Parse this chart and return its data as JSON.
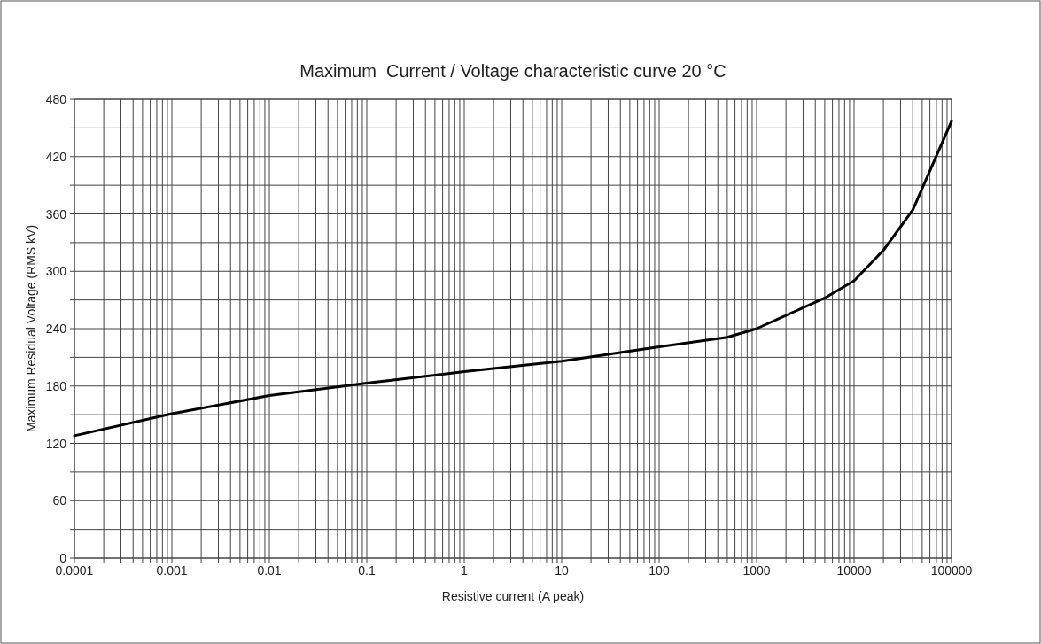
{
  "chart_data": {
    "type": "line",
    "title": "Maximum  Current / Voltage characteristic curve 20 °C",
    "xlabel": "Resistive current (A peak)",
    "ylabel": "Maximum Residual Voltage (RMS kV)",
    "log": "x",
    "grid": true,
    "marker": "none",
    "line_style": "solid",
    "x": [
      0.0001,
      0.001,
      0.01,
      0.1,
      1,
      10,
      100,
      500,
      1000,
      5000,
      10000,
      20000,
      40000,
      100000
    ],
    "series": [
      {
        "color": "#000000",
        "values": [
          128,
          151,
          170,
          183,
          195,
          206,
          221,
          231,
          240,
          272,
          290,
          322,
          364,
          457
        ]
      }
    ],
    "xlim": [
      0.0001,
      100000
    ],
    "ylim": [
      0,
      480
    ],
    "xticks": [
      0.0001,
      {
        "value": 0.0002,
        "label": null
      },
      {
        "value": 0.0003,
        "label": null
      },
      {
        "value": 0.0004,
        "label": null
      },
      {
        "value": 0.0005,
        "label": null
      },
      {
        "value": 0.0006,
        "label": null
      },
      {
        "value": 0.0007,
        "label": null
      },
      {
        "value": 0.0008,
        "label": null
      },
      {
        "value": 0.0009,
        "label": null
      },
      0.001,
      {
        "value": 0.002,
        "label": null
      },
      {
        "value": 0.003,
        "label": null
      },
      {
        "value": 0.004,
        "label": null
      },
      {
        "value": 0.005,
        "label": null
      },
      {
        "value": 0.006,
        "label": null
      },
      {
        "value": 0.007,
        "label": null
      },
      {
        "value": 0.008,
        "label": null
      },
      {
        "value": 0.009,
        "label": null
      },
      0.01,
      {
        "value": 0.02,
        "label": null
      },
      {
        "value": 0.03,
        "label": null
      },
      {
        "value": 0.04,
        "label": null
      },
      {
        "value": 0.05,
        "label": null
      },
      {
        "value": 0.06,
        "label": null
      },
      {
        "value": 0.07,
        "label": null
      },
      {
        "value": 0.08,
        "label": null
      },
      {
        "value": 0.09,
        "label": null
      },
      0.1,
      {
        "value": 0.2,
        "label": null
      },
      {
        "value": 0.3,
        "label": null
      },
      {
        "value": 0.4,
        "label": null
      },
      {
        "value": 0.5,
        "label": null
      },
      {
        "value": 0.6,
        "label": null
      },
      {
        "value": 0.7,
        "label": null
      },
      {
        "value": 0.8,
        "label": null
      },
      {
        "value": 0.9,
        "label": null
      },
      1,
      {
        "value": 2,
        "label": null
      },
      {
        "value": 3,
        "label": null
      },
      {
        "value": 4,
        "label": null
      },
      {
        "value": 5,
        "label": null
      },
      {
        "value": 6,
        "label": null
      },
      {
        "value": 7,
        "label": null
      },
      {
        "value": 8,
        "label": null
      },
      {
        "value": 9,
        "label": null
      },
      10,
      {
        "value": 20,
        "label": null
      },
      {
        "value": 30,
        "label": null
      },
      {
        "value": 40,
        "label": null
      },
      {
        "value": 50,
        "label": null
      },
      {
        "value": 60,
        "label": null
      },
      {
        "value": 70,
        "label": null
      },
      {
        "value": 80,
        "label": null
      },
      {
        "value": 90,
        "label": null
      },
      100,
      {
        "value": 200,
        "label": null
      },
      {
        "value": 300,
        "label": null
      },
      {
        "value": 400,
        "label": null
      },
      {
        "value": 500,
        "label": null
      },
      {
        "value": 600,
        "label": null
      },
      {
        "value": 700,
        "label": null
      },
      {
        "value": 800,
        "label": null
      },
      {
        "value": 900,
        "label": null
      },
      1000,
      {
        "value": 2000,
        "label": null
      },
      {
        "value": 3000,
        "label": null
      },
      {
        "value": 4000,
        "label": null
      },
      {
        "value": 5000,
        "label": null
      },
      {
        "value": 6000,
        "label": null
      },
      {
        "value": 7000,
        "label": null
      },
      {
        "value": 8000,
        "label": null
      },
      {
        "value": 9000,
        "label": null
      },
      10000,
      {
        "value": 20000,
        "label": null
      },
      {
        "value": 30000,
        "label": null
      },
      {
        "value": 40000,
        "label": null
      },
      {
        "value": 50000,
        "label": null
      },
      {
        "value": 60000,
        "label": null
      },
      {
        "value": 70000,
        "label": null
      },
      {
        "value": 80000,
        "label": null
      },
      {
        "value": 90000,
        "label": null
      },
      100000
    ],
    "yticks": [
      0,
      {
        "value": 30,
        "label": null
      },
      60,
      {
        "value": 90,
        "label": null
      },
      120,
      {
        "value": 150,
        "label": null
      },
      180,
      {
        "value": 210,
        "label": null
      },
      240,
      {
        "value": 270,
        "label": null
      },
      300,
      {
        "value": 330,
        "label": null
      },
      360,
      {
        "value": 390,
        "label": null
      },
      420,
      {
        "value": 450,
        "label": null
      },
      480
    ]
  }
}
